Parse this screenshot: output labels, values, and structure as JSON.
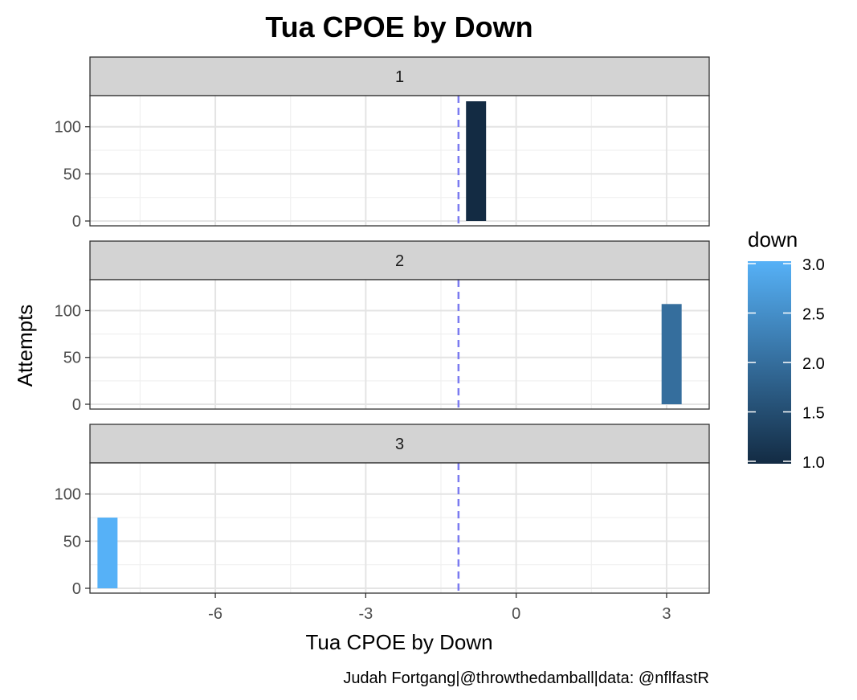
{
  "chart_data": {
    "type": "bar",
    "title": "Tua CPOE by Down",
    "xlabel": "Tua CPOE by Down",
    "ylabel": "Attempts",
    "caption": "Judah Fortgang|@throwthedamball|data: @nflfastR",
    "xlim": [
      -8.5,
      3.85
    ],
    "ylim": [
      0,
      133
    ],
    "x_ticks": [
      -6,
      -3,
      0,
      3
    ],
    "x_tick_labels": [
      "-6",
      "-3",
      "0",
      "3"
    ],
    "y_ticks": [
      0,
      50,
      100
    ],
    "y_tick_labels": [
      "0",
      "50",
      "100"
    ],
    "reference_line": {
      "x": -1.15,
      "style": "dashed",
      "color": "#7b7bf0"
    },
    "grid": true,
    "facets": [
      {
        "label": "1",
        "down": 1,
        "bars": [
          {
            "x": -0.8,
            "width": 0.4,
            "value": 127
          }
        ]
      },
      {
        "label": "2",
        "down": 2,
        "bars": [
          {
            "x": 3.1,
            "width": 0.4,
            "value": 107
          }
        ]
      },
      {
        "label": "3",
        "down": 3,
        "bars": [
          {
            "x": -8.15,
            "width": 0.4,
            "value": 75
          }
        ]
      }
    ],
    "legend": {
      "title": "down",
      "position": "right",
      "range": [
        1.0,
        3.0
      ],
      "tick_values": [
        1.0,
        1.5,
        2.0,
        2.5,
        3.0
      ],
      "tick_labels": [
        "1.0",
        "1.5",
        "2.0",
        "2.5",
        "3.0"
      ],
      "color_low": "#132b43",
      "color_high": "#56b1f7"
    }
  }
}
